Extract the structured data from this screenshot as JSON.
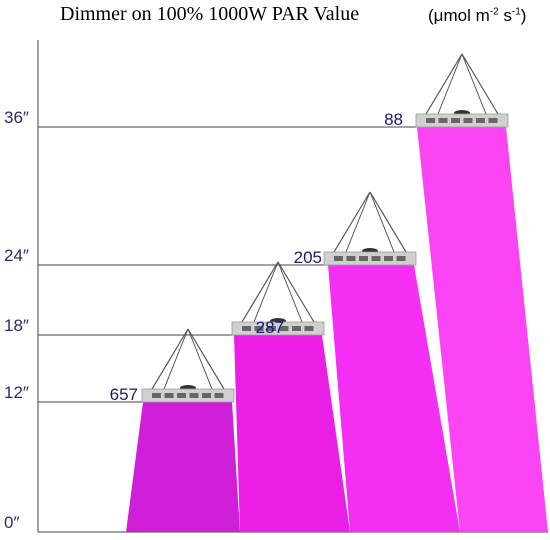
{
  "title": "Dimmer on 100% 1000W PAR Value",
  "unit_label": {
    "prefix": "(μmol m",
    "exp1": "-2",
    "mid": " s",
    "exp2": "-1",
    "suffix": ")"
  },
  "colors": {
    "beam_base": "#cc22dd",
    "beams": [
      "#cf1fd8",
      "#ea1fe6",
      "#f42ef2",
      "#fb45f5"
    ],
    "axis_text": "#2a2a7a",
    "value_text": "#1a1a6e",
    "line": "#444444",
    "fixture": "#d0d0d0",
    "led": "#666666"
  },
  "chart_data": {
    "type": "bar",
    "categories": [
      "12″",
      "18″",
      "24″",
      "36″"
    ],
    "values": [
      657,
      287,
      205,
      88
    ],
    "y_ticks": [
      "0″",
      "12″",
      "18″",
      "24″",
      "36″"
    ],
    "y_tick_values": [
      0,
      12,
      18,
      24,
      36
    ],
    "ylim": [
      0,
      36
    ],
    "title": "Dimmer on 100% 1000W PAR Value",
    "ylabel": "",
    "value_labels": [
      "657",
      "287",
      "205",
      "88"
    ]
  }
}
